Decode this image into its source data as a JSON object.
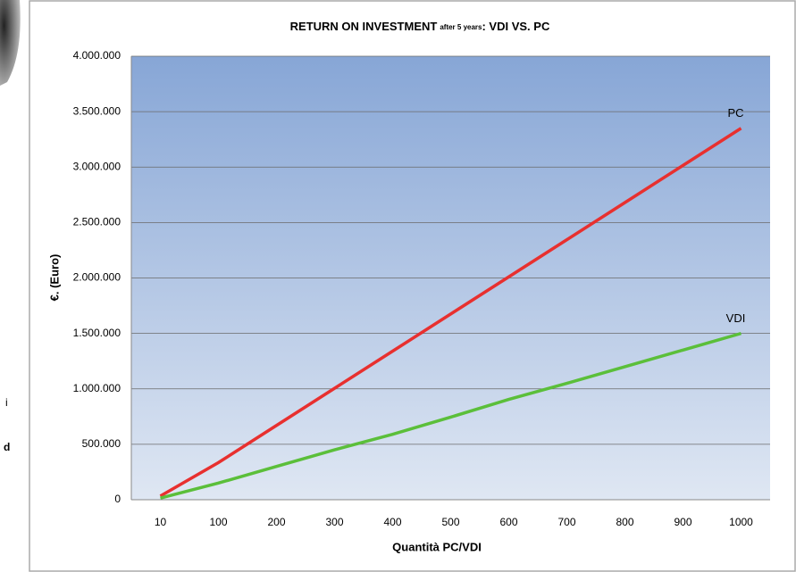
{
  "chart_data": {
    "type": "line",
    "title": "RETURN ON INVESTMENT",
    "title_note": "after 5 years",
    "title_end": ": VDI  VS.  PC",
    "x_label": "Quantità PC/VDI",
    "y_label": "€. (Euro)",
    "categories": [
      "10",
      "100",
      "200",
      "300",
      "400",
      "500",
      "600",
      "700",
      "800",
      "900",
      "1000"
    ],
    "series": [
      {
        "name": "PC",
        "color": "#e8302f",
        "values": [
          33500,
          335000,
          670000,
          1005000,
          1340000,
          1675000,
          2010000,
          2345000,
          2680000,
          3015000,
          3350000
        ]
      },
      {
        "name": "VDI",
        "color": "#5bbf3a",
        "values": [
          15000,
          150000,
          300000,
          450000,
          590000,
          745000,
          905000,
          1050000,
          1200000,
          1350000,
          1500000
        ]
      }
    ],
    "ylim": [
      0,
      4000000
    ],
    "yticks": [
      0,
      {
        "value": 500000,
        "label": "500.000"
      },
      {
        "value": 1000000,
        "label": "1.000.000"
      },
      {
        "value": 1500000,
        "label": "1.500.000"
      },
      {
        "value": 2000000,
        "label": "2.000.000"
      },
      {
        "value": 2500000,
        "label": "2.500.000"
      },
      {
        "value": 3000000,
        "label": "3.000.000"
      },
      {
        "value": 3500000,
        "label": "3.500.000"
      },
      {
        "value": 4000000,
        "label": "4.000.000"
      }
    ],
    "grid": true
  },
  "side_fragments": [
    "i",
    "d"
  ]
}
